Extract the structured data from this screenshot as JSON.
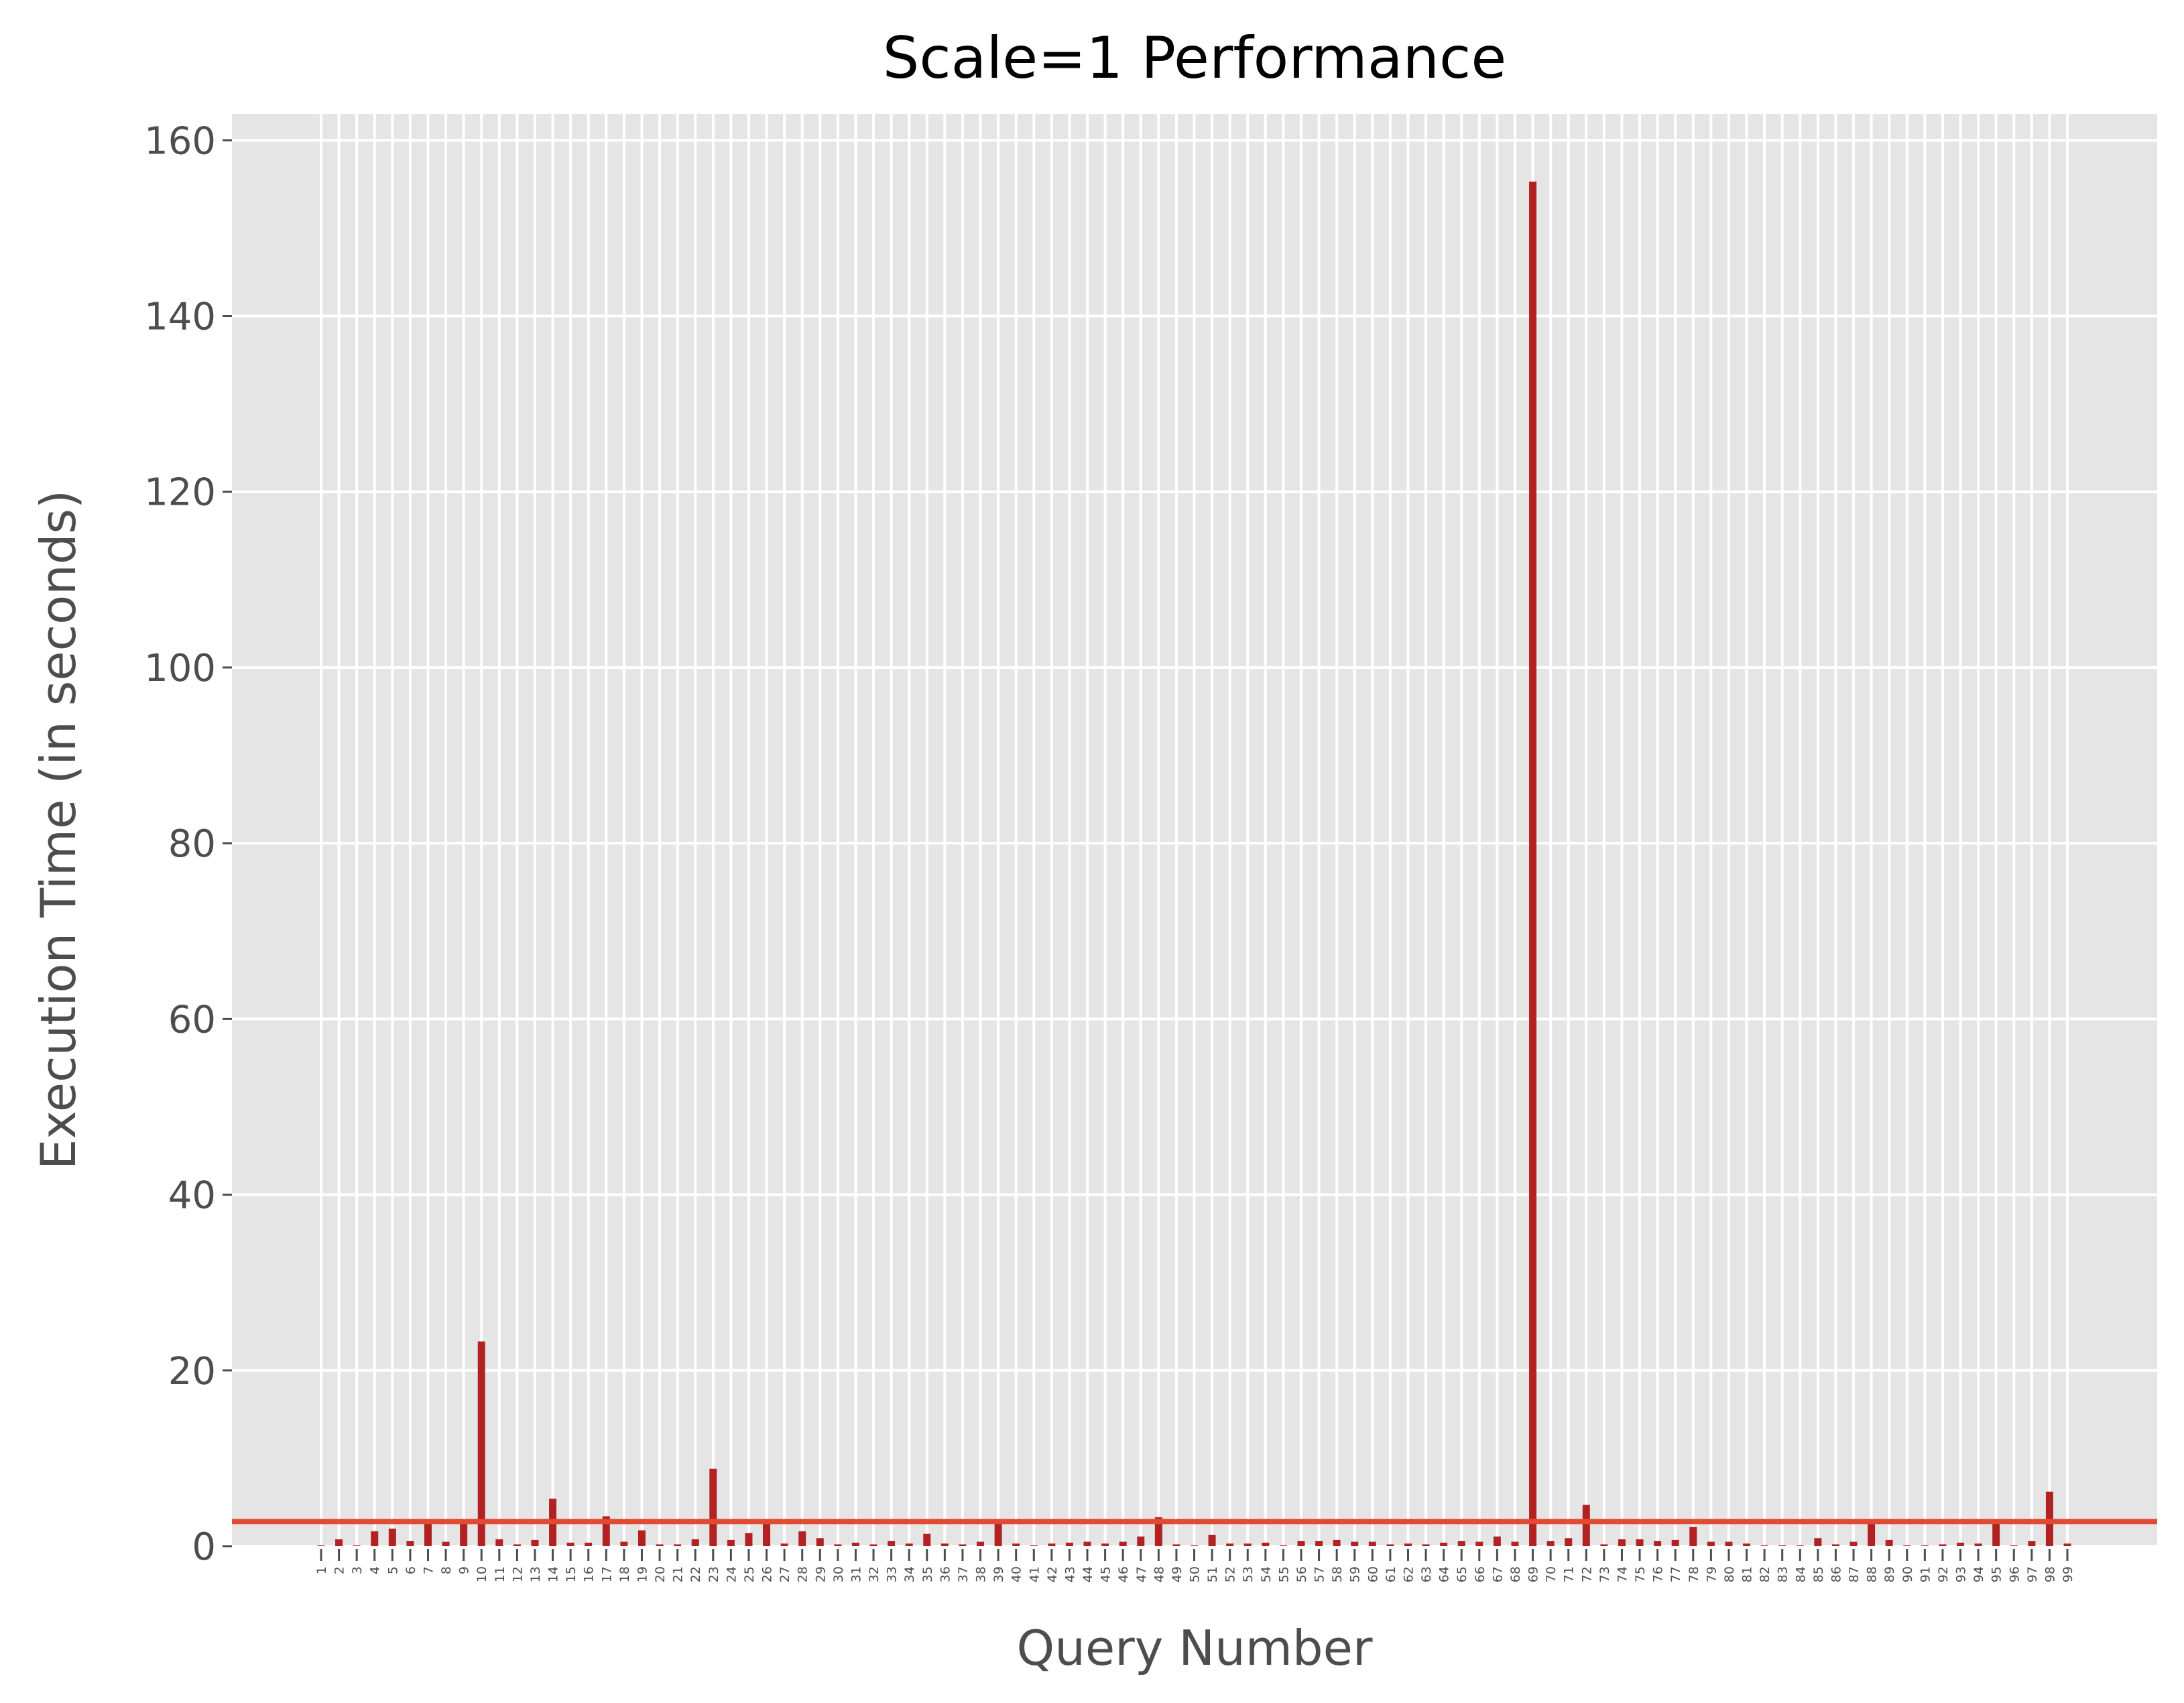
{
  "chart_data": {
    "type": "bar",
    "title": "Scale=1 Performance",
    "xlabel": "Query Number",
    "ylabel": "Execution Time (in seconds)",
    "ylim": [
      0,
      163
    ],
    "yticks": [
      0,
      20,
      40,
      60,
      80,
      100,
      120,
      140,
      160
    ],
    "grid": true,
    "style": "ggplot",
    "bar_color": "#b22222",
    "reference_line": {
      "value": 2.8,
      "color": "#e24a33"
    },
    "categories": [
      "1",
      "2",
      "3",
      "4",
      "5",
      "6",
      "7",
      "8",
      "9",
      "10",
      "11",
      "12",
      "13",
      "14",
      "15",
      "16",
      "17",
      "18",
      "19",
      "20",
      "21",
      "22",
      "23",
      "24",
      "25",
      "26",
      "27",
      "28",
      "29",
      "30",
      "31",
      "32",
      "33",
      "34",
      "35",
      "36",
      "37",
      "38",
      "39",
      "40",
      "41",
      "42",
      "43",
      "44",
      "45",
      "46",
      "47",
      "48",
      "49",
      "50",
      "51",
      "52",
      "53",
      "54",
      "55",
      "56",
      "57",
      "58",
      "59",
      "60",
      "61",
      "62",
      "63",
      "64",
      "65",
      "66",
      "67",
      "68",
      "69",
      "70",
      "71",
      "72",
      "73",
      "74",
      "75",
      "76",
      "77",
      "78",
      "79",
      "80",
      "81",
      "82",
      "83",
      "84",
      "85",
      "86",
      "87",
      "88",
      "89",
      "90",
      "91",
      "92",
      "93",
      "94",
      "95",
      "96",
      "97",
      "98",
      "99"
    ],
    "values": [
      0.1,
      0.8,
      0.1,
      1.7,
      2.0,
      0.6,
      2.6,
      0.5,
      2.8,
      23.3,
      0.8,
      0.2,
      0.7,
      5.4,
      0.4,
      0.4,
      3.4,
      0.5,
      1.8,
      0.2,
      0.2,
      0.8,
      8.8,
      0.7,
      1.5,
      2.8,
      0.3,
      1.7,
      0.9,
      0.2,
      0.4,
      0.2,
      0.6,
      0.3,
      1.4,
      0.3,
      0.2,
      0.5,
      2.7,
      0.3,
      0.1,
      0.3,
      0.4,
      0.5,
      0.3,
      0.5,
      1.1,
      3.3,
      0.2,
      0.1,
      1.3,
      0.3,
      0.3,
      0.4,
      0.1,
      0.6,
      0.6,
      0.7,
      0.5,
      0.5,
      0.2,
      0.3,
      0.2,
      0.4,
      0.6,
      0.5,
      1.1,
      0.5,
      155.3,
      0.6,
      0.9,
      4.7,
      0.2,
      0.8,
      0.8,
      0.6,
      0.7,
      2.2,
      0.5,
      0.5,
      0.3,
      0.1,
      0.1,
      0.1,
      0.9,
      0.2,
      0.5,
      2.8,
      0.7,
      0.1,
      0.1,
      0.2,
      0.4,
      0.3,
      2.6,
      0.1,
      0.6,
      6.2,
      0.3
    ]
  }
}
